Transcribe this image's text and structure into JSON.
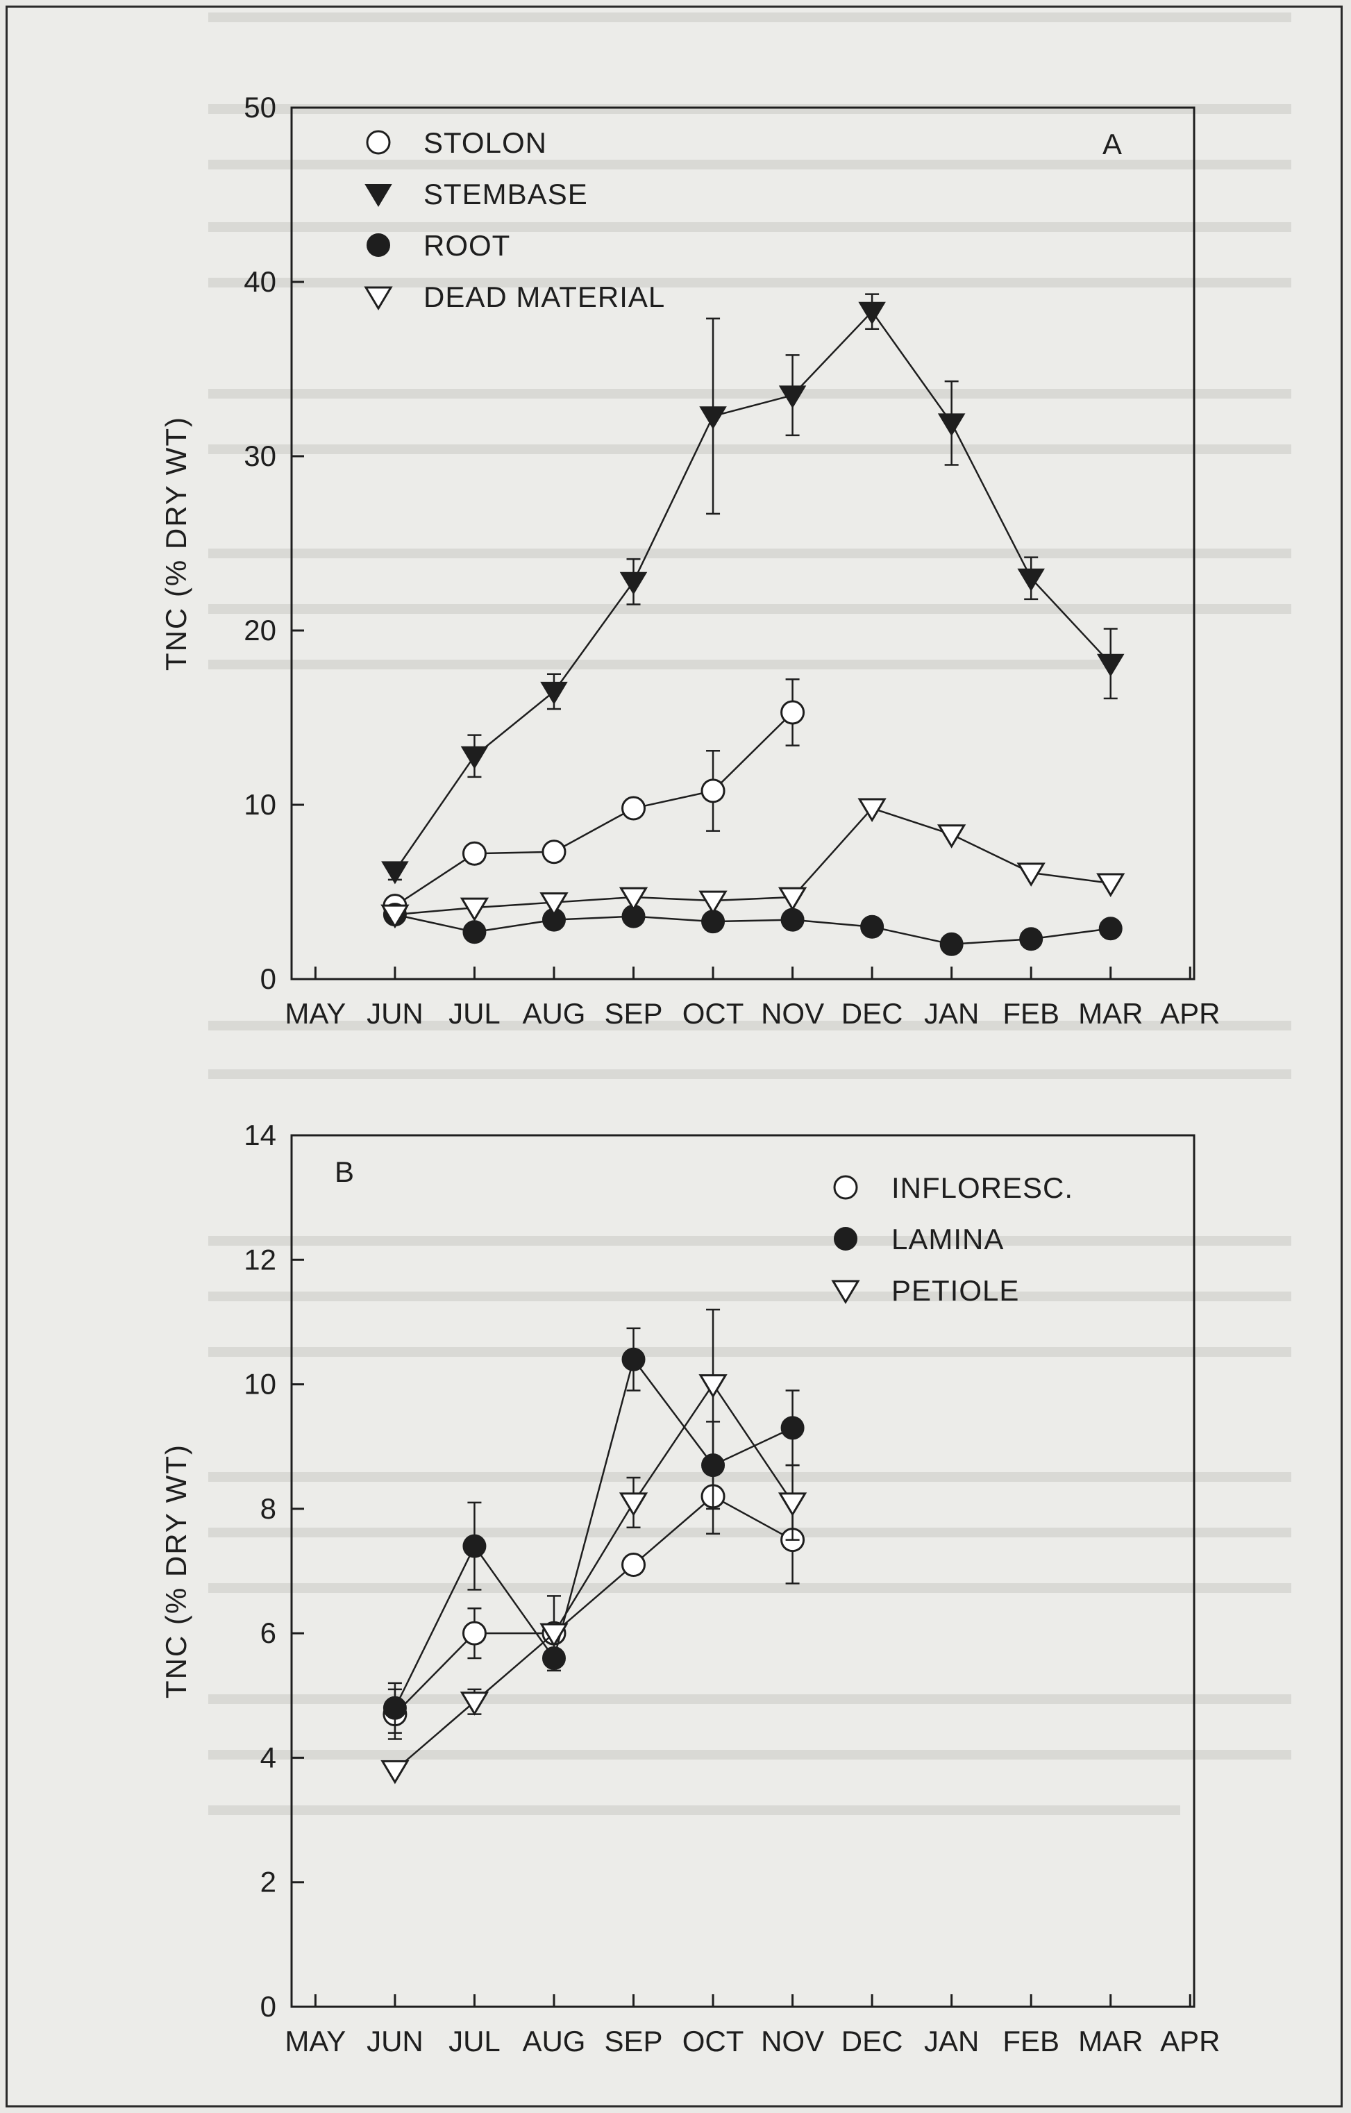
{
  "chart_data": [
    {
      "type": "line",
      "panel_label": "A",
      "ylabel": "TNC (% DRY WT)",
      "ylim": [
        0,
        50
      ],
      "yticks": [
        0,
        10,
        20,
        30,
        40,
        50
      ],
      "categories": [
        "MAY",
        "JUN",
        "JUL",
        "AUG",
        "SEP",
        "OCT",
        "NOV",
        "DEC",
        "JAN",
        "FEB",
        "MAR",
        "APR"
      ],
      "legend": "top-left",
      "series": [
        {
          "name": "STOLON",
          "marker": "open-circle",
          "x": [
            "JUN",
            "JUL",
            "AUG",
            "SEP",
            "OCT",
            "NOV"
          ],
          "values": [
            4.2,
            7.2,
            7.3,
            9.8,
            10.8,
            15.3
          ],
          "err": [
            0.5,
            0.3,
            0.3,
            0.4,
            2.3,
            1.9
          ]
        },
        {
          "name": "STEMBASE",
          "marker": "filled-triangle-down",
          "x": [
            "JUN",
            "JUL",
            "AUG",
            "SEP",
            "OCT",
            "NOV",
            "DEC",
            "JAN",
            "FEB",
            "MAR"
          ],
          "values": [
            6.2,
            12.8,
            16.5,
            22.8,
            32.3,
            33.5,
            38.3,
            31.9,
            23.0,
            18.1
          ],
          "err": [
            0.5,
            1.2,
            1.0,
            1.3,
            5.6,
            2.3,
            1.0,
            2.4,
            1.2,
            2.0
          ]
        },
        {
          "name": "ROOT",
          "marker": "filled-circle",
          "x": [
            "JUN",
            "JUL",
            "AUG",
            "SEP",
            "OCT",
            "NOV",
            "DEC",
            "JAN",
            "FEB",
            "MAR"
          ],
          "values": [
            3.7,
            2.7,
            3.4,
            3.6,
            3.3,
            3.4,
            3.0,
            2.0,
            2.3,
            2.9
          ],
          "err": [
            0,
            0,
            0,
            0,
            0,
            0,
            0,
            0,
            0,
            0
          ]
        },
        {
          "name": "DEAD MATERIAL",
          "marker": "open-triangle-down",
          "x": [
            "JUN",
            "JUL",
            "AUG",
            "SEP",
            "OCT",
            "NOV",
            "DEC",
            "JAN",
            "FEB",
            "MAR"
          ],
          "values": [
            3.7,
            4.1,
            4.4,
            4.7,
            4.5,
            4.7,
            9.8,
            8.3,
            6.1,
            5.5
          ],
          "err": [
            0,
            0,
            0,
            0,
            0,
            0,
            0,
            0,
            0,
            0
          ]
        }
      ]
    },
    {
      "type": "line",
      "panel_label": "B",
      "ylabel": "TNC (% DRY WT)",
      "ylim": [
        0,
        14
      ],
      "yticks": [
        0,
        2,
        4,
        6,
        8,
        10,
        12,
        14
      ],
      "categories": [
        "MAY",
        "JUN",
        "JUL",
        "AUG",
        "SEP",
        "OCT",
        "NOV",
        "DEC",
        "JAN",
        "FEB",
        "MAR",
        "APR"
      ],
      "legend": "top-right",
      "series": [
        {
          "name": "INFLORESC.",
          "marker": "open-circle",
          "x": [
            "JUN",
            "JUL",
            "AUG",
            "SEP",
            "OCT",
            "NOV"
          ],
          "values": [
            4.7,
            6.0,
            6.0,
            7.1,
            8.2,
            7.5
          ],
          "err": [
            0.4,
            0.4,
            0.6,
            0,
            0.6,
            0.7
          ]
        },
        {
          "name": "LAMINA",
          "marker": "filled-circle",
          "x": [
            "JUN",
            "JUL",
            "AUG",
            "SEP",
            "OCT",
            "NOV"
          ],
          "values": [
            4.8,
            7.4,
            5.6,
            10.4,
            8.7,
            9.3
          ],
          "err": [
            0.4,
            0.7,
            0,
            0.5,
            0.7,
            0.6
          ]
        },
        {
          "name": "PETIOLE",
          "marker": "open-triangle-down",
          "x": [
            "JUN",
            "JUL",
            "AUG",
            "SEP",
            "OCT",
            "NOV"
          ],
          "values": [
            3.8,
            4.9,
            6.0,
            8.1,
            10.0,
            8.1
          ],
          "err": [
            0,
            0.2,
            0,
            0.4,
            1.2,
            0.6
          ]
        }
      ]
    }
  ]
}
